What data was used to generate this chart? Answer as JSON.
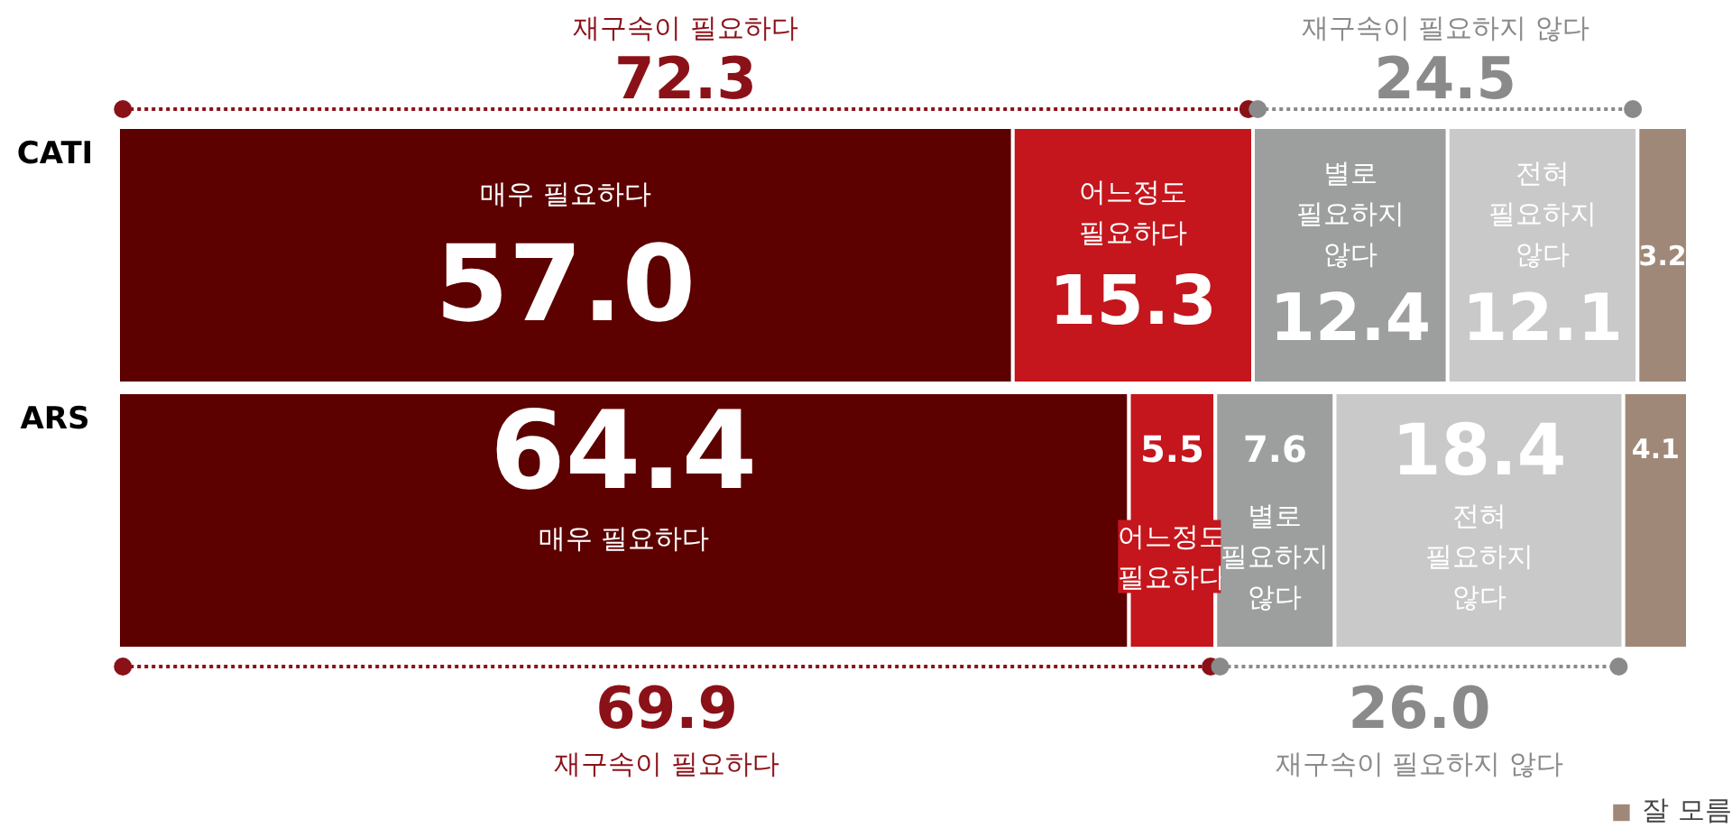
{
  "chart_data": {
    "type": "bar",
    "orientation": "horizontal",
    "stacked": true,
    "categories": [
      "CATI",
      "ARS"
    ],
    "series": [
      {
        "name": "매우 필요하다",
        "color": "#5c0000",
        "values": [
          57.0,
          64.4
        ],
        "value_labels": [
          "57.0",
          "64.4"
        ]
      },
      {
        "name": "어느정도 필요하다",
        "color": "#c4161c",
        "values": [
          15.3,
          5.5
        ],
        "value_labels": [
          "15.3",
          "5.5"
        ]
      },
      {
        "name": "별로 필요하지 않다",
        "color": "#9d9e9e",
        "values": [
          12.4,
          7.6
        ],
        "value_labels": [
          "12.4",
          "7.6"
        ]
      },
      {
        "name": "전혀 필요하지 않다",
        "color": "#c8c9c8",
        "values": [
          12.1,
          18.4
        ],
        "value_labels": [
          "12.1",
          "18.4"
        ]
      },
      {
        "name": "잘 모름",
        "color": "#a08878",
        "values": [
          3.2,
          4.1
        ],
        "value_labels": [
          "3.2",
          "4.1"
        ]
      }
    ],
    "xlim": [
      0,
      100
    ],
    "annotations": [
      "재구속이 필요하다",
      "72.3",
      "재구속이 필요하지 않다",
      "24.5",
      "69.9",
      "재구속이 필요하다",
      "26.0",
      "재구속이 필요하지 않다"
    ],
    "legend": "bottom right"
  }
}
